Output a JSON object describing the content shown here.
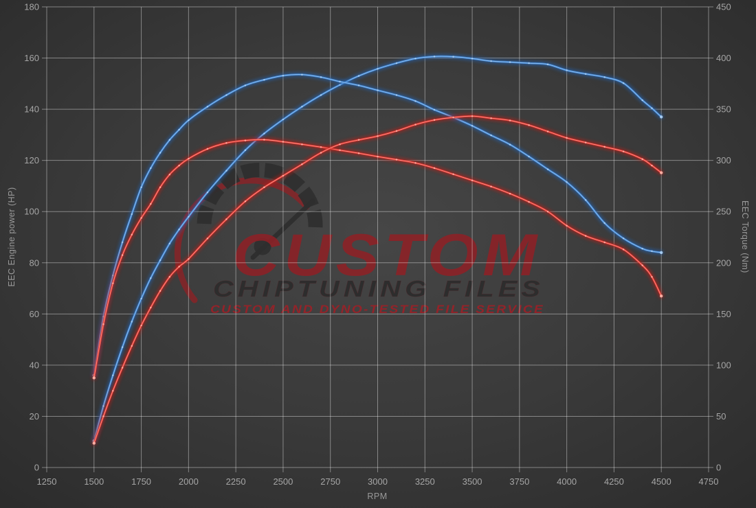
{
  "watermark": {
    "brand": "CUSTOM",
    "sub_brand": "CHIPTUNING FILES",
    "tagline": "CUSTOM AND DYNO-TESTED FILE SERVICE"
  },
  "colors": {
    "background_center": "#464646",
    "background_mid": "#3a3a3a",
    "background_edge": "#2b2b2b",
    "grid": "rgba(255,255,255,0.40)",
    "tick_label": "#a6a6a6",
    "axis_title": "#9a9a9a",
    "blue_core": "#4388d6",
    "blue_glow": "#2063b5",
    "blue_dot": "#aacff2",
    "red_core": "#e23730",
    "red_glow": "#c01b14",
    "red_dot": "#ffb2a6",
    "watermark_red": "#8e2126",
    "watermark_dark": "#2d2d2d",
    "watermark_tagline_red": "#9e2027"
  },
  "chart_data": {
    "type": "line",
    "title": "",
    "xlabel": "RPM",
    "ylabel_left": "EEC Engine power (HP)",
    "ylabel_right": "EEC Torque (Nm)",
    "grid": true,
    "legend": "none",
    "x_range": [
      1250,
      4750
    ],
    "y_left_range": [
      0,
      180
    ],
    "y_right_range": [
      0,
      450
    ],
    "x_ticks": [
      1250,
      1500,
      1750,
      2000,
      2250,
      2500,
      2750,
      3000,
      3250,
      3500,
      3750,
      4000,
      4250,
      4500,
      4750
    ],
    "y_left_ticks": [
      0,
      20,
      40,
      60,
      80,
      100,
      120,
      140,
      160,
      180
    ],
    "y_right_ticks": [
      0,
      50,
      100,
      150,
      200,
      250,
      300,
      350,
      400,
      450
    ],
    "x": [
      1500,
      1550,
      1600,
      1650,
      1700,
      1750,
      1800,
      1850,
      1900,
      1950,
      2000,
      2100,
      2200,
      2300,
      2400,
      2500,
      2600,
      2700,
      2800,
      2900,
      3000,
      3100,
      3200,
      3300,
      3400,
      3500,
      3600,
      3700,
      3800,
      3900,
      4000,
      4100,
      4200,
      4300,
      4400,
      4450,
      4500
    ],
    "series": [
      {
        "id": "torque-b-high",
        "axis": "right",
        "unit": "Nm",
        "palette": "blue",
        "values": [
          26,
          60,
          90,
          117.5,
          142.5,
          165,
          185,
          202.5,
          218.8,
          232.5,
          245,
          268.8,
          290,
          310,
          326.3,
          340,
          352.5,
          363.8,
          373.8,
          382.5,
          389.5,
          395,
          399.5,
          401.5,
          401.3,
          399.5,
          397,
          396,
          395,
          393.8,
          388,
          384.5,
          381.3,
          375.5,
          358.8,
          351,
          342.5
        ]
      },
      {
        "id": "torque-a-low",
        "axis": "right",
        "unit": "Nm",
        "palette": "blue",
        "values": [
          90,
          147.5,
          187.5,
          220,
          247.5,
          273.8,
          292.5,
          307.5,
          320,
          330,
          339.3,
          352.5,
          363.8,
          373.3,
          378.8,
          382.8,
          383.8,
          381.3,
          377,
          373.3,
          368.5,
          363.8,
          358,
          349.5,
          342,
          333.8,
          324.5,
          315.5,
          303.8,
          291.3,
          278.8,
          261.3,
          238.8,
          223.8,
          213.8,
          211.3,
          210
        ]
      },
      {
        "id": "power-a-low",
        "axis": "left",
        "unit": "HP",
        "palette": "red",
        "values": [
          35,
          56,
          72,
          83,
          91,
          97.5,
          103,
          109.5,
          114.5,
          118,
          120.7,
          124.5,
          126.8,
          127.8,
          128.1,
          127.3,
          126.3,
          125.2,
          124,
          122.8,
          121.5,
          120.3,
          119,
          117,
          114.6,
          112.2,
          109.8,
          107,
          103.8,
          100,
          94.5,
          90.5,
          88,
          85.2,
          79,
          74.5,
          67
        ]
      },
      {
        "id": "power-b-high",
        "axis": "left",
        "unit": "HP",
        "palette": "red",
        "values": [
          9.5,
          20,
          30,
          39,
          47.5,
          55.5,
          62.5,
          69,
          74.5,
          78.5,
          81.5,
          89.5,
          97,
          104,
          109.5,
          114,
          118.5,
          123,
          126.3,
          128,
          129.5,
          131.5,
          134,
          135.8,
          136.8,
          137.3,
          136.5,
          135.6,
          133.8,
          131.3,
          128.8,
          127,
          125.3,
          123.5,
          120.5,
          118,
          115.2
        ]
      }
    ]
  }
}
